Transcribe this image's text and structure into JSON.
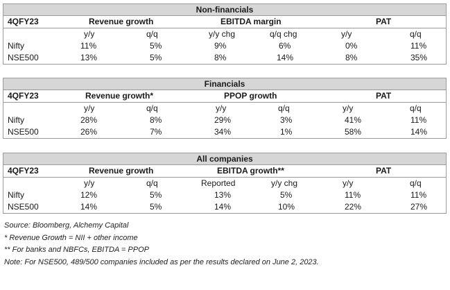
{
  "tables": [
    {
      "title": "Non-financials",
      "period": "4QFY23",
      "groups": [
        "Revenue growth",
        "EBITDA margin",
        "PAT"
      ],
      "subheaders": [
        "y/y",
        "q/q",
        "y/y chg",
        "q/q chg",
        "y/y",
        "q/q"
      ],
      "rows": [
        {
          "name": "Nifty",
          "values": [
            "11%",
            "5%",
            "9%",
            "6%",
            "0%",
            "11%"
          ]
        },
        {
          "name": "NSE500",
          "values": [
            "13%",
            "5%",
            "8%",
            "14%",
            "8%",
            "35%"
          ]
        }
      ]
    },
    {
      "title": "Financials",
      "period": "4QFY23",
      "groups": [
        "Revenue growth*",
        "PPOP growth",
        "PAT"
      ],
      "subheaders": [
        "y/y",
        "q/q",
        "y/y",
        "q/q",
        "y/y",
        "q/q"
      ],
      "rows": [
        {
          "name": "Nifty",
          "values": [
            "28%",
            "8%",
            "29%",
            "3%",
            "41%",
            "11%"
          ]
        },
        {
          "name": "NSE500",
          "values": [
            "26%",
            "7%",
            "34%",
            "1%",
            "58%",
            "14%"
          ]
        }
      ]
    },
    {
      "title": "All companies",
      "period": "4QFY23",
      "groups": [
        "Revenue growth",
        "EBITDA growth**",
        "PAT"
      ],
      "subheaders": [
        "y/y",
        "q/q",
        "Reported",
        "y/y chg",
        "y/y",
        "q/q"
      ],
      "rows": [
        {
          "name": "Nifty",
          "values": [
            "12%",
            "5%",
            "13%",
            "5%",
            "11%",
            "11%"
          ]
        },
        {
          "name": "NSE500",
          "values": [
            "14%",
            "5%",
            "14%",
            "10%",
            "22%",
            "27%"
          ]
        }
      ]
    }
  ],
  "notes": [
    "Source: Bloomberg, Alchemy Capital",
    "*  Revenue Growth = NII + other income",
    "** For banks and NBFCs, EBITDA = PPOP",
    "Note: For NSE500, 489/500 companies included as per the results declared on June 2, 2023."
  ]
}
